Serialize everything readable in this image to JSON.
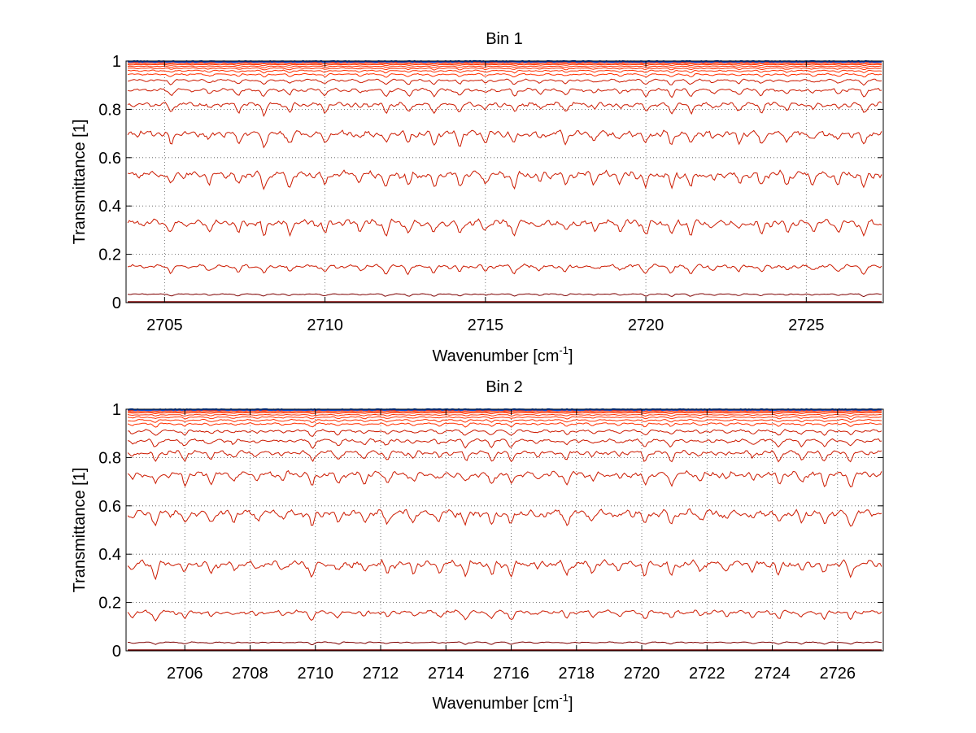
{
  "chart_data": [
    {
      "type": "line",
      "title": "Bin 1",
      "xlabel": "Wavenumber [cm",
      "xlabel_sup": "-1",
      "xlabel_end": "]",
      "ylabel": "Transmittance [1]",
      "xlim": [
        2703.8,
        2727.4
      ],
      "ylim": [
        0,
        1
      ],
      "xticks": [
        2705,
        2710,
        2715,
        2720,
        2725
      ],
      "yticks": [
        0,
        0.2,
        0.4,
        0.6,
        0.8,
        1
      ],
      "ytick_labels": [
        "0",
        "0.2",
        "0.4",
        "0.6",
        "0.8",
        "1"
      ],
      "grid": true,
      "dip_centers": [
        2705.2,
        2706.4,
        2707.3,
        2708.1,
        2708.9,
        2710.0,
        2711.1,
        2711.9,
        2712.6,
        2713.4,
        2714.2,
        2715.0,
        2715.9,
        2716.7,
        2717.5,
        2718.4,
        2719.2,
        2720.0,
        2720.8,
        2721.4,
        2722.1,
        2722.9,
        2723.6,
        2724.4,
        2725.2,
        2726.0,
        2726.8
      ],
      "series_levels": [
        0.0,
        0.035,
        0.15,
        0.33,
        0.53,
        0.7,
        0.82,
        0.88,
        0.92,
        0.945,
        0.96,
        0.97,
        0.978,
        0.985,
        0.99,
        0.994,
        0.997,
        1.0
      ],
      "colors": {
        "main": "#cc1a00",
        "dark": "#7f0000",
        "top": "#0050e0",
        "bright": "#ff3000"
      }
    },
    {
      "type": "line",
      "title": "Bin 2",
      "xlabel": "Wavenumber [cm",
      "xlabel_sup": "-1",
      "xlabel_end": "]",
      "ylabel": "Transmittance [1]",
      "xlim": [
        2704.2,
        2727.4
      ],
      "ylim": [
        0,
        1
      ],
      "xticks": [
        2706,
        2708,
        2710,
        2712,
        2714,
        2716,
        2718,
        2720,
        2722,
        2724,
        2726
      ],
      "yticks": [
        0,
        0.2,
        0.4,
        0.6,
        0.8,
        1
      ],
      "ytick_labels": [
        "0",
        "0.2",
        "0.4",
        "0.6",
        "0.8",
        "1"
      ],
      "grid": true,
      "dip_centers": [
        2704.4,
        2705.1,
        2706.0,
        2706.8,
        2707.5,
        2708.2,
        2709.0,
        2709.9,
        2710.7,
        2711.5,
        2712.2,
        2713.0,
        2713.8,
        2714.6,
        2715.4,
        2716.0,
        2716.8,
        2717.7,
        2718.5,
        2719.3,
        2720.1,
        2720.9,
        2721.8,
        2722.6,
        2723.4,
        2724.2,
        2724.9,
        2725.6,
        2726.4
      ],
      "series_levels": [
        0.0,
        0.035,
        0.16,
        0.36,
        0.57,
        0.73,
        0.82,
        0.87,
        0.91,
        0.94,
        0.955,
        0.967,
        0.977,
        0.985,
        0.99,
        0.994,
        0.997,
        1.0
      ],
      "colors": {
        "main": "#cc1a00",
        "dark": "#7f0000",
        "top": "#0050e0",
        "bright": "#ff3000"
      }
    }
  ]
}
